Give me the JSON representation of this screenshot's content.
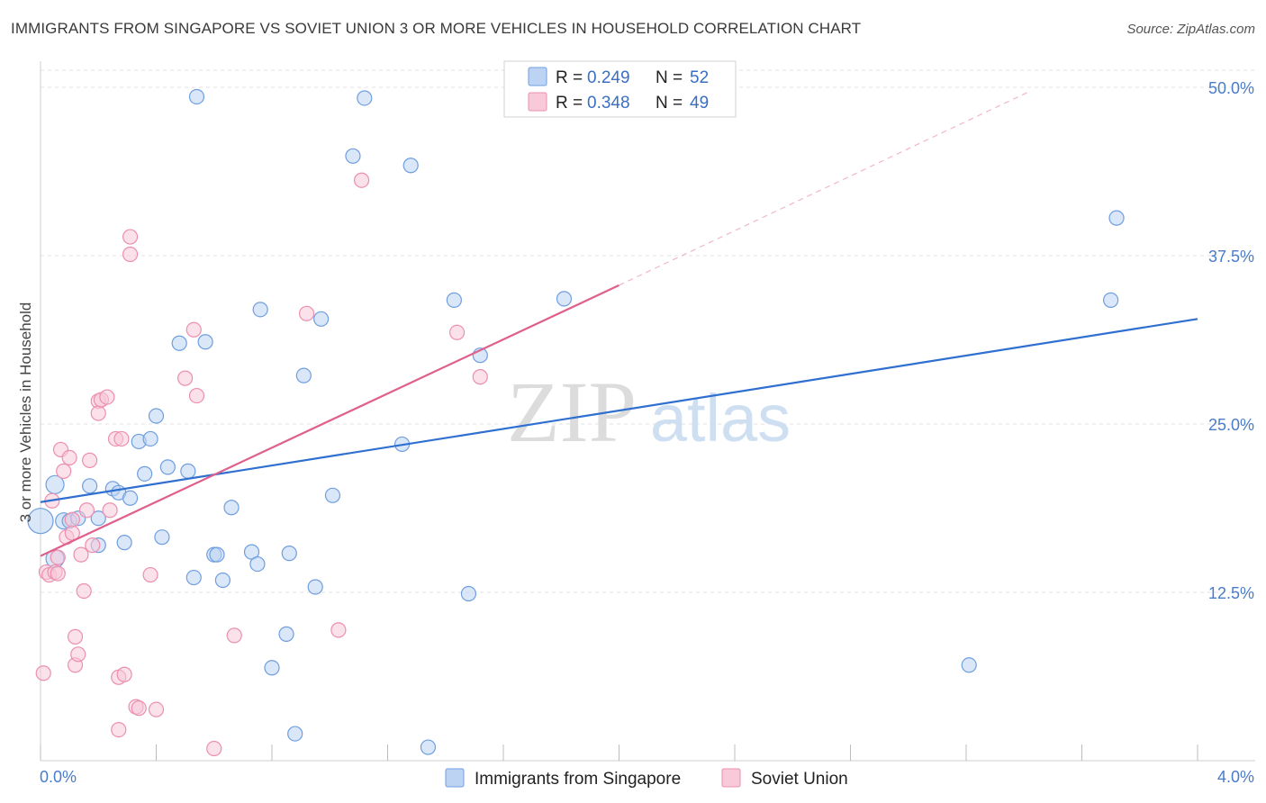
{
  "header": {
    "title": "IMMIGRANTS FROM SINGAPORE VS SOVIET UNION 3 OR MORE VEHICLES IN HOUSEHOLD CORRELATION CHART",
    "source": "Source: ZipAtlas.com"
  },
  "watermark": {
    "zip": "ZIP",
    "atlas": "atlas"
  },
  "chart_data": {
    "type": "scatter",
    "title": "IMMIGRANTS FROM SINGAPORE VS SOVIET UNION 3 OR MORE VEHICLES IN HOUSEHOLD CORRELATION CHART",
    "xlabel": "",
    "ylabel": "3 or more Vehicles in Household",
    "xlim": [
      0,
      4.0
    ],
    "ylim": [
      0,
      52
    ],
    "x_tick_labels": [
      "0.0%",
      "4.0%"
    ],
    "y_ticks": [
      12.5,
      25.0,
      37.5,
      50.0
    ],
    "y_tick_labels": [
      "12.5%",
      "25.0%",
      "37.5%",
      "50.0%"
    ],
    "grid": true,
    "legend": {
      "position": "top-center",
      "entries": [
        {
          "r_label": "R = ",
          "r_value": "0.249",
          "n_label": "N = ",
          "n_value": "52"
        },
        {
          "r_label": "R = ",
          "r_value": "0.348",
          "n_label": "N = ",
          "n_value": "49"
        }
      ]
    },
    "series": [
      {
        "name": "Immigrants from Singapore",
        "color": "#6f9ee0",
        "fill": "#bcd3f3",
        "trend": {
          "x0": 0.0,
          "y0": 19.2,
          "x1": 4.0,
          "y1": 32.8,
          "color": "#2f6fd0"
        },
        "points": [
          [
            0.0,
            17.8,
            14
          ],
          [
            0.05,
            20.5,
            10
          ],
          [
            0.05,
            15.0,
            10
          ],
          [
            0.08,
            17.8,
            9
          ],
          [
            0.1,
            17.8,
            8
          ],
          [
            0.13,
            18.0,
            8
          ],
          [
            0.17,
            20.4,
            8
          ],
          [
            0.2,
            16.0,
            8
          ],
          [
            0.2,
            18.0,
            8
          ],
          [
            0.25,
            20.2,
            8
          ],
          [
            0.27,
            19.9,
            8
          ],
          [
            0.29,
            16.2,
            8
          ],
          [
            0.31,
            19.5,
            8
          ],
          [
            0.34,
            23.7,
            8
          ],
          [
            0.36,
            21.3,
            8
          ],
          [
            0.38,
            23.9,
            8
          ],
          [
            0.4,
            25.6,
            8
          ],
          [
            0.42,
            16.6,
            8
          ],
          [
            0.44,
            21.8,
            8
          ],
          [
            0.48,
            31.0,
            8
          ],
          [
            0.51,
            21.5,
            8
          ],
          [
            0.53,
            13.6,
            8
          ],
          [
            0.54,
            49.3,
            8
          ],
          [
            0.57,
            31.1,
            8
          ],
          [
            0.6,
            15.3,
            8
          ],
          [
            0.61,
            15.3,
            8
          ],
          [
            0.63,
            13.4,
            8
          ],
          [
            0.66,
            18.8,
            8
          ],
          [
            0.73,
            15.5,
            8
          ],
          [
            0.75,
            14.6,
            8
          ],
          [
            0.76,
            33.5,
            8
          ],
          [
            0.8,
            6.9,
            8
          ],
          [
            0.85,
            9.4,
            8
          ],
          [
            0.86,
            15.4,
            8
          ],
          [
            0.88,
            2.0,
            8
          ],
          [
            0.91,
            28.6,
            8
          ],
          [
            0.95,
            12.9,
            8
          ],
          [
            0.97,
            32.8,
            8
          ],
          [
            1.01,
            19.7,
            8
          ],
          [
            1.08,
            44.9,
            8
          ],
          [
            1.12,
            49.2,
            8
          ],
          [
            1.25,
            23.5,
            8
          ],
          [
            1.28,
            44.2,
            8
          ],
          [
            1.34,
            1.0,
            8
          ],
          [
            1.43,
            34.2,
            8
          ],
          [
            1.48,
            12.4,
            8
          ],
          [
            1.52,
            30.1,
            8
          ],
          [
            1.81,
            34.3,
            8
          ],
          [
            3.21,
            7.1,
            8
          ],
          [
            3.7,
            34.2,
            8
          ],
          [
            3.72,
            40.3,
            8
          ]
        ]
      },
      {
        "name": "Soviet Union",
        "color": "#ec8fae",
        "fill": "#f8c9d8",
        "trend": {
          "x0": 0.0,
          "y0": 15.2,
          "x1": 2.0,
          "y1": 35.3,
          "color": "#e0608c"
        },
        "trend_ext": {
          "x0": 2.0,
          "y0": 35.3,
          "x1": 3.42,
          "y1": 49.7
        },
        "points": [
          [
            0.01,
            6.5,
            8
          ],
          [
            0.02,
            14.0,
            8
          ],
          [
            0.03,
            13.8,
            8
          ],
          [
            0.04,
            19.3,
            8
          ],
          [
            0.05,
            14.0,
            8
          ],
          [
            0.06,
            15.1,
            8
          ],
          [
            0.06,
            13.9,
            8
          ],
          [
            0.07,
            23.1,
            8
          ],
          [
            0.08,
            21.5,
            8
          ],
          [
            0.09,
            16.6,
            8
          ],
          [
            0.1,
            22.5,
            8
          ],
          [
            0.11,
            17.9,
            8
          ],
          [
            0.11,
            16.9,
            8
          ],
          [
            0.12,
            7.1,
            8
          ],
          [
            0.12,
            9.2,
            8
          ],
          [
            0.13,
            7.9,
            8
          ],
          [
            0.14,
            15.3,
            8
          ],
          [
            0.15,
            12.6,
            8
          ],
          [
            0.16,
            18.6,
            8
          ],
          [
            0.17,
            22.3,
            8
          ],
          [
            0.18,
            16.0,
            8
          ],
          [
            0.2,
            26.7,
            8
          ],
          [
            0.2,
            25.8,
            8
          ],
          [
            0.21,
            26.8,
            8
          ],
          [
            0.23,
            27.0,
            8
          ],
          [
            0.24,
            18.6,
            8
          ],
          [
            0.26,
            23.9,
            8
          ],
          [
            0.27,
            6.2,
            8
          ],
          [
            0.27,
            2.3,
            8
          ],
          [
            0.28,
            23.9,
            8
          ],
          [
            0.29,
            6.4,
            8
          ],
          [
            0.31,
            38.9,
            8
          ],
          [
            0.31,
            37.6,
            8
          ],
          [
            0.33,
            4.0,
            8
          ],
          [
            0.34,
            3.9,
            8
          ],
          [
            0.38,
            13.8,
            8
          ],
          [
            0.4,
            3.8,
            8
          ],
          [
            0.5,
            28.4,
            8
          ],
          [
            0.53,
            32.0,
            8
          ],
          [
            0.54,
            27.1,
            8
          ],
          [
            0.6,
            0.9,
            8
          ],
          [
            0.67,
            9.3,
            8
          ],
          [
            0.92,
            33.2,
            8
          ],
          [
            1.03,
            9.7,
            8
          ],
          [
            1.11,
            43.1,
            8
          ],
          [
            1.44,
            31.8,
            8
          ],
          [
            1.52,
            28.5,
            8
          ]
        ]
      }
    ]
  }
}
